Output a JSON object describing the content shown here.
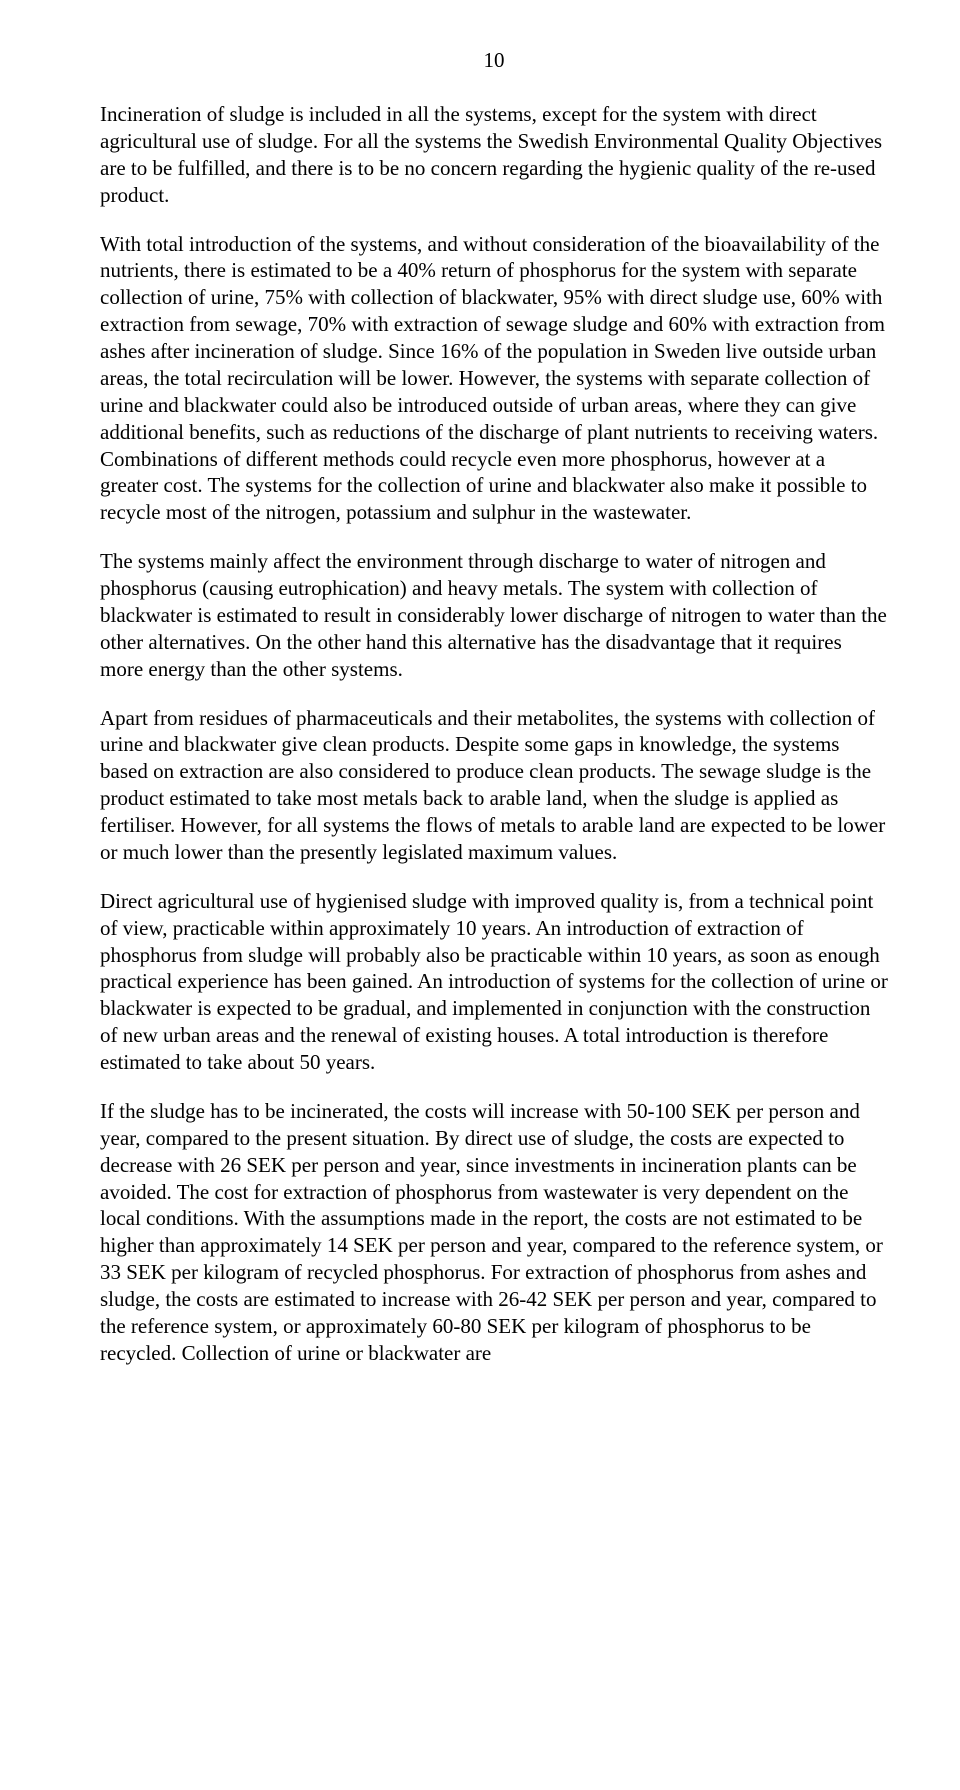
{
  "page": {
    "number": "10"
  },
  "paragraphs": {
    "p1": "Incineration of sludge is included in all the systems, except for the system with direct agricultural use of sludge. For all the systems the Swedish Environmental Quality Objectives are to be fulfilled, and there is to be no concern regarding the hygienic quality of the re-used product.",
    "p2": "With total introduction of the systems, and without consideration of the bioavailability of the nutrients, there is estimated to be a 40% return of phosphorus for the system with separate collection of urine, 75% with collection of blackwater, 95% with direct sludge use, 60% with extraction from sewage, 70% with extraction of sewage sludge and 60% with extraction from ashes after incineration of sludge. Since 16% of the population in Sweden live outside urban areas, the total recirculation will be lower. However, the systems with separate collection of urine and blackwater could also be introduced outside of urban areas, where they can give additional benefits, such as reductions of the discharge of plant nutrients to receiving waters. Combinations of different methods could recycle even more phosphorus, however at a greater cost. The systems for the collection of urine and blackwater also make it possible to recycle most of the nitrogen, potassium and sulphur in the wastewater.",
    "p3": "The systems mainly affect the environment through discharge to water of nitrogen and phosphorus (causing eutrophication) and heavy metals. The system with collection of blackwater is estimated to result in considerably lower discharge of nitrogen to water than the other alternatives. On the other hand this alternative has the disadvantage that it requires more energy than the other systems.",
    "p4": "Apart from residues of pharmaceuticals and their metabolites, the systems with collection of urine and blackwater give clean products. Despite some gaps in knowledge, the systems based on extraction are also considered to produce clean products. The sewage sludge is the product estimated to take most metals back to arable land, when the sludge is applied as fertiliser. However, for all systems the flows of metals to arable land are expected to be lower or much lower than the presently legislated maximum values.",
    "p5": "Direct agricultural use of hygienised sludge with improved quality is, from a technical point of view, practicable within approximately 10 years. An introduction of extraction of phosphorus from sludge will probably also be practicable within 10 years, as soon as enough practical experience has been gained. An introduction of systems for the collection of urine or blackwater is expected to be gradual, and implemented in conjunction with the construction of new urban areas and the renewal of existing houses. A total introduction is therefore estimated to take about 50 years.",
    "p6": "If the sludge has to be incinerated, the costs will increase with 50-100 SEK per person and year, compared to the present situation. By direct use of sludge, the costs are expected to decrease with 26 SEK per person and year, since investments in incineration plants can be avoided. The cost for extraction of phosphorus from wastewater is very dependent on the local conditions. With the assumptions made in the report, the costs are not estimated to be higher than approximately 14 SEK per person and year, compared to the reference system, or 33 SEK per kilogram of recycled phosphorus. For extraction of phosphorus from ashes and sludge, the costs are estimated to increase with 26-42 SEK per person and year, compared to the reference system, or approximately 60-80 SEK per kilogram of phosphorus to be recycled. Collection of urine or blackwater are"
  }
}
